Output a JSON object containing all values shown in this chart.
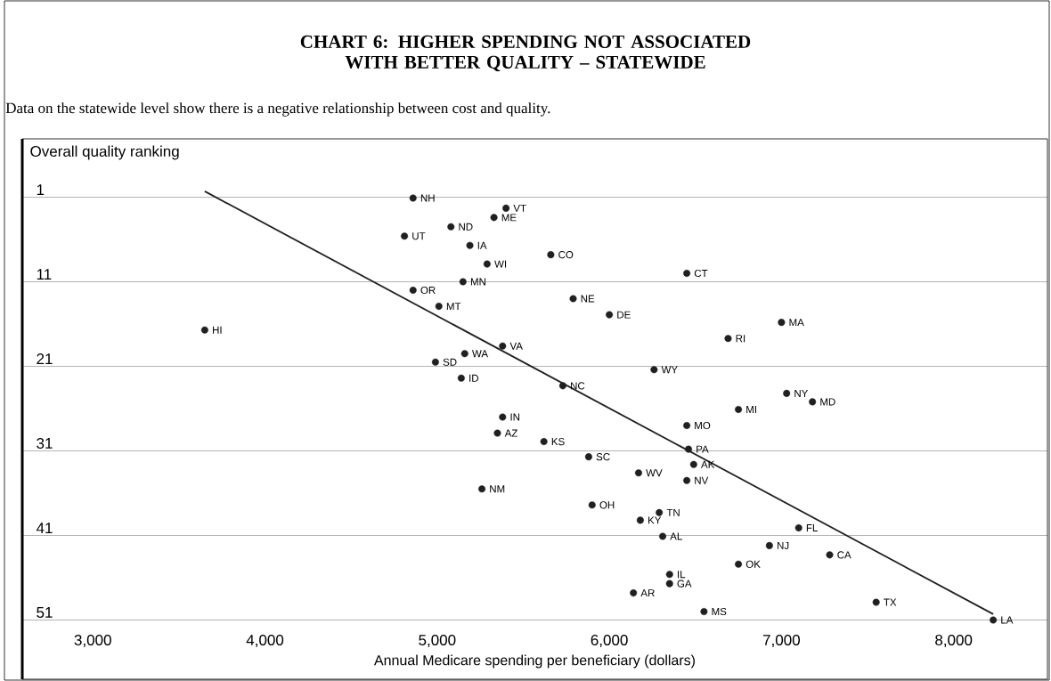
{
  "chart_data": {
    "type": "scatter",
    "title": "CHART 6:  HIGHER SPENDING NOT ASSOCIATED WITH BETTER QUALITY – STATEWIDE",
    "subtitle": "Data on the statewide level show there is a negative relationship between cost and quality.",
    "xlabel": "Annual Medicare spending per beneficiary (dollars)",
    "ylabel": "Overall quality ranking",
    "xlim": [
      2590,
      8545
    ],
    "ylim": [
      58,
      -5.9
    ],
    "xticks": [
      {
        "value": 3000,
        "label": "3,000"
      },
      {
        "value": 4000,
        "label": "4,000"
      },
      {
        "value": 5000,
        "label": "5,000"
      },
      {
        "value": 6000,
        "label": "6,000"
      },
      {
        "value": 7000,
        "label": "7,000"
      },
      {
        "value": 8000,
        "label": "8,000"
      }
    ],
    "yticks": [
      1,
      11,
      21,
      31,
      41,
      51
    ],
    "grid": "y",
    "series": [
      {
        "color": "#231f20",
        "marker": "circle",
        "x": [
          4860,
          5400,
          5330,
          5080,
          4810,
          5190,
          5660,
          5290,
          6450,
          5150,
          4860,
          5790,
          5010,
          6000,
          7000,
          3650,
          6690,
          5380,
          5160,
          4990,
          6260,
          5140,
          5730,
          7030,
          7180,
          6750,
          5380,
          6450,
          5350,
          5620,
          6460,
          5880,
          6490,
          6170,
          6450,
          5260,
          5900,
          6290,
          6180,
          7100,
          6310,
          6930,
          7280,
          6750,
          6350,
          6350,
          6140,
          7550,
          6550,
          8230
        ],
        "values": [
          1.1,
          2.3,
          3.4,
          4.5,
          5.6,
          6.7,
          7.8,
          8.9,
          10.0,
          11.0,
          12.0,
          13.0,
          13.9,
          14.9,
          15.8,
          16.7,
          17.7,
          18.6,
          19.5,
          20.5,
          21.4,
          22.4,
          23.3,
          24.2,
          25.2,
          26.1,
          27.0,
          28.0,
          28.9,
          29.9,
          30.8,
          31.7,
          32.6,
          33.6,
          34.5,
          35.5,
          37.4,
          38.3,
          39.2,
          40.1,
          41.1,
          42.2,
          43.3,
          44.4,
          45.6,
          46.7,
          47.8,
          48.9,
          50.0,
          51.0
        ]
      },
      {
        "type": "line",
        "marker": "none",
        "color": "#231f20",
        "x": [
          3650,
          8230
        ],
        "values": [
          0.3,
          50.3
        ]
      }
    ],
    "annotations": [
      {
        "text": "NH",
        "x": 4860,
        "y": 1.1
      },
      {
        "text": "VT",
        "x": 5400,
        "y": 2.3
      },
      {
        "text": "ME",
        "x": 5330,
        "y": 3.4
      },
      {
        "text": "ND",
        "x": 5080,
        "y": 4.5
      },
      {
        "text": "UT",
        "x": 4810,
        "y": 5.6
      },
      {
        "text": "IA",
        "x": 5190,
        "y": 6.7
      },
      {
        "text": "CO",
        "x": 5660,
        "y": 7.8
      },
      {
        "text": "WI",
        "x": 5290,
        "y": 8.9
      },
      {
        "text": "CT",
        "x": 6450,
        "y": 10.0
      },
      {
        "text": "MN",
        "x": 5150,
        "y": 11.0
      },
      {
        "text": "OR",
        "x": 4860,
        "y": 12.0
      },
      {
        "text": "NE",
        "x": 5790,
        "y": 13.0
      },
      {
        "text": "MT",
        "x": 5010,
        "y": 13.9
      },
      {
        "text": "DE",
        "x": 6000,
        "y": 14.9
      },
      {
        "text": "MA",
        "x": 7000,
        "y": 15.8
      },
      {
        "text": "HI",
        "x": 3650,
        "y": 16.7
      },
      {
        "text": "RI",
        "x": 6690,
        "y": 17.7
      },
      {
        "text": "VA",
        "x": 5380,
        "y": 18.6
      },
      {
        "text": "WA",
        "x": 5160,
        "y": 19.5
      },
      {
        "text": "SD",
        "x": 4990,
        "y": 20.5
      },
      {
        "text": "WY",
        "x": 6260,
        "y": 21.4
      },
      {
        "text": "ID",
        "x": 5140,
        "y": 22.4
      },
      {
        "text": "NC",
        "x": 5730,
        "y": 23.3
      },
      {
        "text": "NY",
        "x": 7030,
        "y": 24.2
      },
      {
        "text": "MD",
        "x": 7180,
        "y": 25.2
      },
      {
        "text": "MI",
        "x": 6750,
        "y": 26.1
      },
      {
        "text": "IN",
        "x": 5380,
        "y": 27.0
      },
      {
        "text": "MO",
        "x": 6450,
        "y": 28.0
      },
      {
        "text": "AZ",
        "x": 5350,
        "y": 28.9
      },
      {
        "text": "KS",
        "x": 5620,
        "y": 29.9
      },
      {
        "text": "PA",
        "x": 6460,
        "y": 30.8
      },
      {
        "text": "SC",
        "x": 5880,
        "y": 31.7
      },
      {
        "text": "AK",
        "x": 6490,
        "y": 32.6
      },
      {
        "text": "WV",
        "x": 6170,
        "y": 33.6
      },
      {
        "text": "NV",
        "x": 6450,
        "y": 34.5
      },
      {
        "text": "NM",
        "x": 5260,
        "y": 35.5
      },
      {
        "text": "OH",
        "x": 5900,
        "y": 37.4
      },
      {
        "text": "TN",
        "x": 6290,
        "y": 38.3
      },
      {
        "text": "KY",
        "x": 6180,
        "y": 39.2
      },
      {
        "text": "FL",
        "x": 7100,
        "y": 40.1
      },
      {
        "text": "AL",
        "x": 6310,
        "y": 41.1
      },
      {
        "text": "NJ",
        "x": 6930,
        "y": 42.2
      },
      {
        "text": "CA",
        "x": 7280,
        "y": 43.3
      },
      {
        "text": "OK",
        "x": 6750,
        "y": 44.4
      },
      {
        "text": "IL",
        "x": 6350,
        "y": 45.6
      },
      {
        "text": "GA",
        "x": 6350,
        "y": 46.7
      },
      {
        "text": "AR",
        "x": 6140,
        "y": 47.8
      },
      {
        "text": "TX",
        "x": 7550,
        "y": 48.9
      },
      {
        "text": "MS",
        "x": 6550,
        "y": 50.0
      },
      {
        "text": "LA",
        "x": 8230,
        "y": 51.0
      }
    ]
  }
}
